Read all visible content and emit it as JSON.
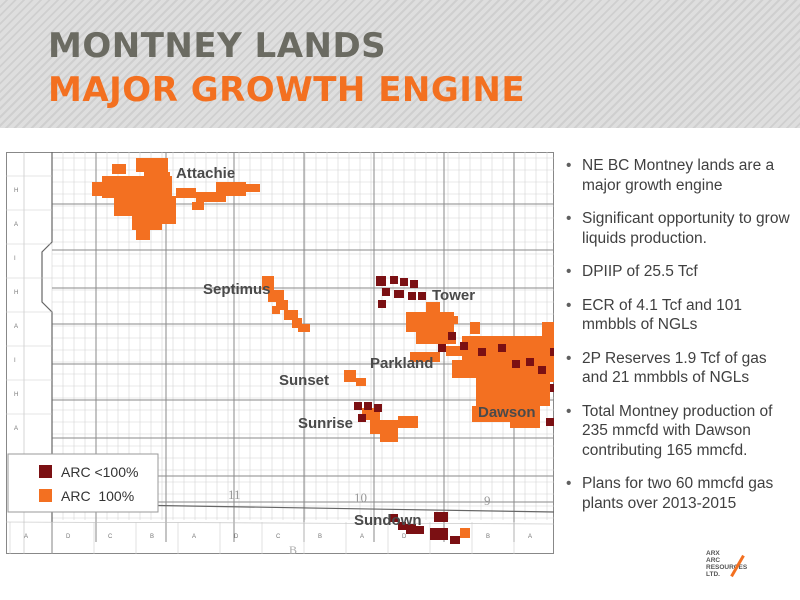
{
  "header": {
    "title_line1": "MONTNEY LANDS",
    "title_line2": "MAJOR GROWTH ENGINE"
  },
  "map": {
    "region_labels": {
      "attachie": "Attachie",
      "septimus": "Septimus",
      "tower": "Tower",
      "parkland": "Parkland",
      "sunset": "Sunset",
      "sunrise": "Sunrise",
      "dawson": "Dawson",
      "sundown": "Sundown"
    },
    "grid_letters": [
      "H",
      "A",
      "I",
      "H",
      "A",
      "I",
      "H",
      "A"
    ],
    "bottom_letters": [
      "A",
      "D",
      "C",
      "B",
      "A",
      "D",
      "C",
      "B",
      "A",
      "D",
      "C",
      "B",
      "A"
    ],
    "grid_numbers": [
      "11",
      "10",
      "9"
    ],
    "block_letter": "B",
    "colors": {
      "arc_partial": "#7b1013",
      "arc_full": "#f37021"
    },
    "legend": [
      {
        "label": "ARC <100%",
        "color": "#7b1013"
      },
      {
        "label": "ARC  100%",
        "color": "#f37021"
      }
    ]
  },
  "bullets": [
    "NE BC Montney lands are a major growth engine",
    "Significant opportunity to grow liquids production.",
    "DPIIP of 25.5 Tcf",
    "ECR of 4.1 Tcf and 101 mmbbls of NGLs",
    "2P Reserves 1.9 Tcf of gas and 21 mmbbls of NGLs",
    "Total Montney production of 235 mmcfd with Dawson contributing 165 mmcfd.",
    "Plans for two 60 mmcfd gas plants over 2013-2015"
  ],
  "logo": {
    "line1": "ARX",
    "line2": "ARC",
    "line3": "RESOURCES",
    "line4": "LTD."
  }
}
